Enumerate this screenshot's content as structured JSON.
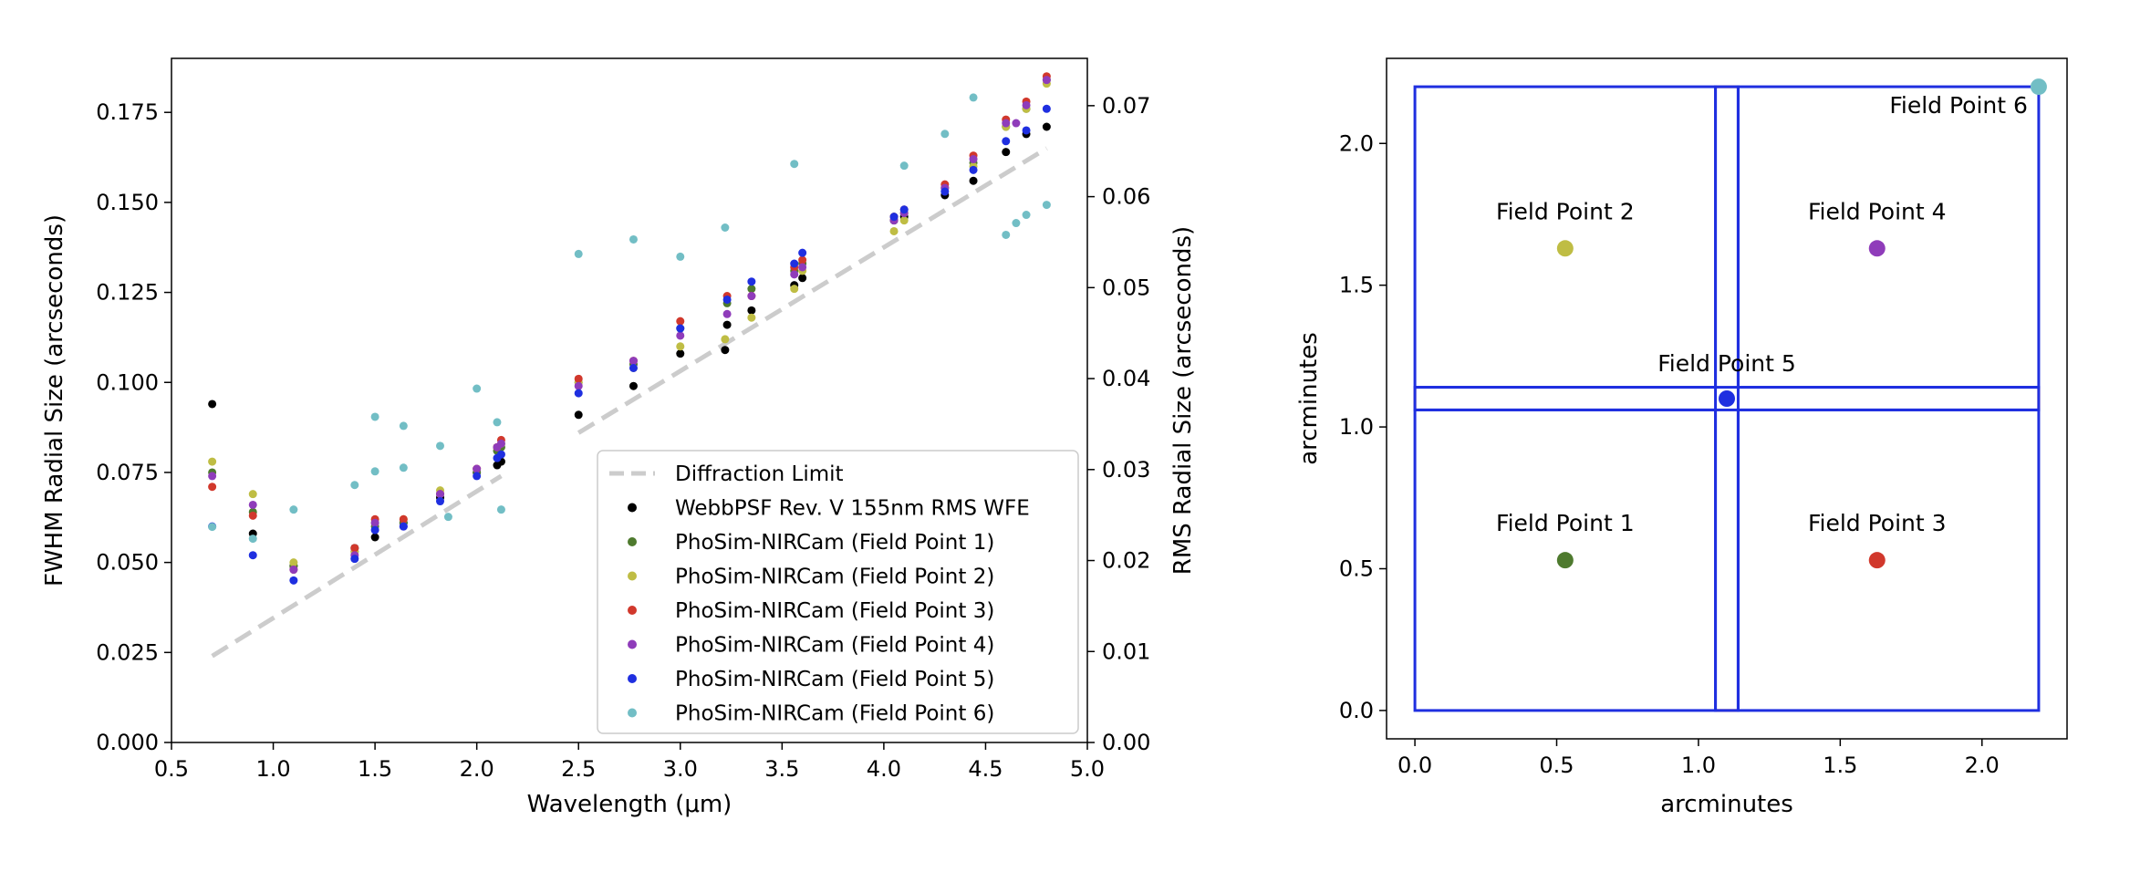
{
  "chart_data": [
    {
      "type": "scatter",
      "xlabel": "Wavelength (μm)",
      "ylabel": "FWHM Radial Size (arcseconds)",
      "y2label": "RMS Radial Size (arcseconds)",
      "xlim": [
        0.5,
        5.0
      ],
      "ylim": [
        0.0,
        0.19
      ],
      "y2lim": [
        0.0,
        0.0752
      ],
      "xticks": [
        "0.5",
        "1.0",
        "1.5",
        "2.0",
        "2.5",
        "3.0",
        "3.5",
        "4.0",
        "4.5",
        "5.0"
      ],
      "yticks": [
        "0.000",
        "0.025",
        "0.050",
        "0.075",
        "0.100",
        "0.125",
        "0.150",
        "0.175"
      ],
      "y2ticks": [
        "0.00",
        "0.01",
        "0.02",
        "0.03",
        "0.04",
        "0.05",
        "0.06",
        "0.07"
      ],
      "grid": false,
      "legend_position": "lower-right",
      "lines": [
        {
          "name": "Diffraction Limit",
          "color": "#cccccc",
          "style": "dashed",
          "segments": [
            [
              [
                0.7,
                0.024
              ],
              [
                2.12,
                0.074
              ]
            ],
            [
              [
                2.5,
                0.086
              ],
              [
                4.8,
                0.165
              ]
            ]
          ]
        }
      ],
      "series": [
        {
          "name": "WebbPSF Rev. V 155nm RMS WFE",
          "color": "#000000",
          "points": [
            [
              0.7,
              0.094
            ],
            [
              0.9,
              0.058
            ],
            [
              1.1,
              0.049
            ],
            [
              1.4,
              0.054
            ],
            [
              1.5,
              0.057
            ],
            [
              1.64,
              0.061
            ],
            [
              1.82,
              0.068
            ],
            [
              2.0,
              0.075
            ],
            [
              2.1,
              0.077
            ],
            [
              2.12,
              0.078
            ],
            [
              2.5,
              0.091
            ],
            [
              2.77,
              0.099
            ],
            [
              3.0,
              0.108
            ],
            [
              3.22,
              0.109
            ],
            [
              3.23,
              0.116
            ],
            [
              3.35,
              0.12
            ],
            [
              3.56,
              0.127
            ],
            [
              3.6,
              0.129
            ],
            [
              4.05,
              0.145
            ],
            [
              4.1,
              0.146
            ],
            [
              4.3,
              0.152
            ],
            [
              4.44,
              0.156
            ],
            [
              4.6,
              0.164
            ],
            [
              4.7,
              0.169
            ],
            [
              4.8,
              0.171
            ]
          ]
        },
        {
          "name": "PhoSim-NIRCam (Field Point 1)",
          "color": "#4e7a2e",
          "points": [
            [
              0.7,
              0.075
            ],
            [
              0.9,
              0.064
            ],
            [
              1.1,
              0.049
            ],
            [
              1.4,
              0.053
            ],
            [
              1.5,
              0.06
            ],
            [
              1.64,
              0.061
            ],
            [
              1.82,
              0.069
            ],
            [
              2.0,
              0.075
            ],
            [
              2.1,
              0.081
            ],
            [
              2.12,
              0.082
            ],
            [
              2.5,
              0.1
            ],
            [
              2.77,
              0.105
            ],
            [
              3.0,
              0.115
            ],
            [
              3.23,
              0.122
            ],
            [
              3.35,
              0.126
            ],
            [
              3.56,
              0.131
            ],
            [
              3.6,
              0.133
            ],
            [
              4.05,
              0.146
            ],
            [
              4.1,
              0.147
            ],
            [
              4.3,
              0.154
            ],
            [
              4.44,
              0.161
            ],
            [
              4.6,
              0.171
            ],
            [
              4.7,
              0.176
            ],
            [
              4.8,
              0.184
            ]
          ]
        },
        {
          "name": "PhoSim-NIRCam (Field Point 2)",
          "color": "#bfbd44",
          "points": [
            [
              0.7,
              0.078
            ],
            [
              0.9,
              0.069
            ],
            [
              1.1,
              0.05
            ],
            [
              1.4,
              0.053
            ],
            [
              1.5,
              0.061
            ],
            [
              1.64,
              0.062
            ],
            [
              1.82,
              0.07
            ],
            [
              2.0,
              0.076
            ],
            [
              2.1,
              0.082
            ],
            [
              2.12,
              0.083
            ],
            [
              2.5,
              0.1
            ],
            [
              2.77,
              0.104
            ],
            [
              3.0,
              0.11
            ],
            [
              3.22,
              0.112
            ],
            [
              3.35,
              0.118
            ],
            [
              3.56,
              0.126
            ],
            [
              3.6,
              0.131
            ],
            [
              4.05,
              0.142
            ],
            [
              4.1,
              0.145
            ],
            [
              4.3,
              0.154
            ],
            [
              4.44,
              0.16
            ],
            [
              4.6,
              0.171
            ],
            [
              4.7,
              0.176
            ],
            [
              4.8,
              0.183
            ]
          ]
        },
        {
          "name": "PhoSim-NIRCam (Field Point 3)",
          "color": "#d1382c",
          "points": [
            [
              0.7,
              0.071
            ],
            [
              0.9,
              0.063
            ],
            [
              1.1,
              0.048
            ],
            [
              1.4,
              0.054
            ],
            [
              1.5,
              0.062
            ],
            [
              1.64,
              0.062
            ],
            [
              1.82,
              0.069
            ],
            [
              2.0,
              0.076
            ],
            [
              2.1,
              0.082
            ],
            [
              2.12,
              0.084
            ],
            [
              2.5,
              0.101
            ],
            [
              2.77,
              0.106
            ],
            [
              3.0,
              0.117
            ],
            [
              3.23,
              0.124
            ],
            [
              3.35,
              0.124
            ],
            [
              3.56,
              0.132
            ],
            [
              3.6,
              0.134
            ],
            [
              4.05,
              0.146
            ],
            [
              4.1,
              0.148
            ],
            [
              4.3,
              0.155
            ],
            [
              4.44,
              0.163
            ],
            [
              4.6,
              0.173
            ],
            [
              4.7,
              0.178
            ],
            [
              4.8,
              0.185
            ]
          ]
        },
        {
          "name": "PhoSim-NIRCam (Field Point 4)",
          "color": "#8f3cba",
          "points": [
            [
              0.7,
              0.074
            ],
            [
              0.9,
              0.066
            ],
            [
              1.1,
              0.048
            ],
            [
              1.4,
              0.052
            ],
            [
              1.5,
              0.061
            ],
            [
              1.64,
              0.06
            ],
            [
              1.82,
              0.069
            ],
            [
              2.0,
              0.076
            ],
            [
              2.1,
              0.082
            ],
            [
              2.12,
              0.083
            ],
            [
              2.5,
              0.099
            ],
            [
              2.77,
              0.106
            ],
            [
              3.0,
              0.113
            ],
            [
              3.23,
              0.119
            ],
            [
              3.35,
              0.124
            ],
            [
              3.56,
              0.13
            ],
            [
              3.6,
              0.132
            ],
            [
              4.05,
              0.145
            ],
            [
              4.1,
              0.147
            ],
            [
              4.3,
              0.154
            ],
            [
              4.44,
              0.162
            ],
            [
              4.6,
              0.172
            ],
            [
              4.65,
              0.172
            ],
            [
              4.7,
              0.177
            ],
            [
              4.8,
              0.184
            ]
          ]
        },
        {
          "name": "PhoSim-NIRCam (Field Point 5)",
          "color": "#1f2fe0",
          "points": [
            [
              0.7,
              0.06
            ],
            [
              0.9,
              0.052
            ],
            [
              1.1,
              0.045
            ],
            [
              1.4,
              0.051
            ],
            [
              1.5,
              0.059
            ],
            [
              1.64,
              0.06
            ],
            [
              1.82,
              0.067
            ],
            [
              2.0,
              0.074
            ],
            [
              2.1,
              0.079
            ],
            [
              2.12,
              0.08
            ],
            [
              2.5,
              0.097
            ],
            [
              2.77,
              0.104
            ],
            [
              3.0,
              0.115
            ],
            [
              3.23,
              0.123
            ],
            [
              3.35,
              0.128
            ],
            [
              3.56,
              0.133
            ],
            [
              3.6,
              0.136
            ],
            [
              4.05,
              0.146
            ],
            [
              4.1,
              0.148
            ],
            [
              4.3,
              0.153
            ],
            [
              4.44,
              0.159
            ],
            [
              4.6,
              0.167
            ],
            [
              4.7,
              0.17
            ],
            [
              4.8,
              0.176
            ]
          ]
        },
        {
          "name": "PhoSim-NIRCam (Field Point 6)",
          "color": "#72bec5",
          "axis": "y2",
          "points": [
            [
              0.7,
              0.0237
            ],
            [
              0.9,
              0.0224
            ],
            [
              1.1,
              0.0256
            ],
            [
              1.4,
              0.0283
            ],
            [
              1.5,
              0.0358
            ],
            [
              1.5,
              0.0298
            ],
            [
              1.64,
              0.0348
            ],
            [
              1.64,
              0.0302
            ],
            [
              1.82,
              0.0326
            ],
            [
              1.86,
              0.0248
            ],
            [
              2.0,
              0.0389
            ],
            [
              2.1,
              0.0352
            ],
            [
              2.12,
              0.0256
            ],
            [
              2.5,
              0.0537
            ],
            [
              2.77,
              0.0553
            ],
            [
              3.0,
              0.0534
            ],
            [
              3.22,
              0.0566
            ],
            [
              3.56,
              0.0636
            ],
            [
              4.1,
              0.0634
            ],
            [
              4.3,
              0.0669
            ],
            [
              4.44,
              0.0709
            ],
            [
              4.6,
              0.0558
            ],
            [
              4.65,
              0.0571
            ],
            [
              4.7,
              0.058
            ],
            [
              4.8,
              0.0591
            ]
          ]
        }
      ]
    },
    {
      "type": "scatter",
      "xlabel": "arcminutes",
      "ylabel": "arcminutes",
      "xlim": [
        -0.1,
        2.3
      ],
      "ylim": [
        -0.1,
        2.3
      ],
      "xticks": [
        "0.0",
        "0.5",
        "1.0",
        "1.5",
        "2.0"
      ],
      "yticks": [
        "0.0",
        "0.5",
        "1.0",
        "1.5",
        "2.0"
      ],
      "grid": false,
      "detector_outline_color": "#1f2fe0",
      "gap_marker_color": "#d1382c",
      "detectors": [
        {
          "x": [
            0.0,
            1.06
          ],
          "y": [
            0.0,
            1.06
          ]
        },
        {
          "x": [
            1.14,
            2.2
          ],
          "y": [
            0.0,
            1.06
          ]
        },
        {
          "x": [
            0.0,
            1.06
          ],
          "y": [
            1.14,
            2.2
          ]
        },
        {
          "x": [
            1.14,
            2.2
          ],
          "y": [
            1.14,
            2.2
          ]
        },
        {
          "x": [
            1.06,
            1.14
          ],
          "y": [
            0.0,
            2.2
          ]
        },
        {
          "x": [
            0.0,
            2.2
          ],
          "y": [
            1.06,
            1.14
          ]
        }
      ],
      "points": [
        {
          "label": "Field Point 1",
          "x": 0.53,
          "y": 0.53,
          "color": "#4e7a2e"
        },
        {
          "label": "Field Point 2",
          "x": 0.53,
          "y": 1.63,
          "color": "#bfbd44"
        },
        {
          "label": "Field Point 3",
          "x": 1.63,
          "y": 0.53,
          "color": "#d1382c"
        },
        {
          "label": "Field Point 4",
          "x": 1.63,
          "y": 1.63,
          "color": "#8f3cba"
        },
        {
          "label": "Field Point 5",
          "x": 1.1,
          "y": 1.1,
          "color": "#1f2fe0"
        },
        {
          "label": "Field Point 6",
          "x": 2.2,
          "y": 2.2,
          "color": "#72bec5"
        }
      ]
    }
  ]
}
